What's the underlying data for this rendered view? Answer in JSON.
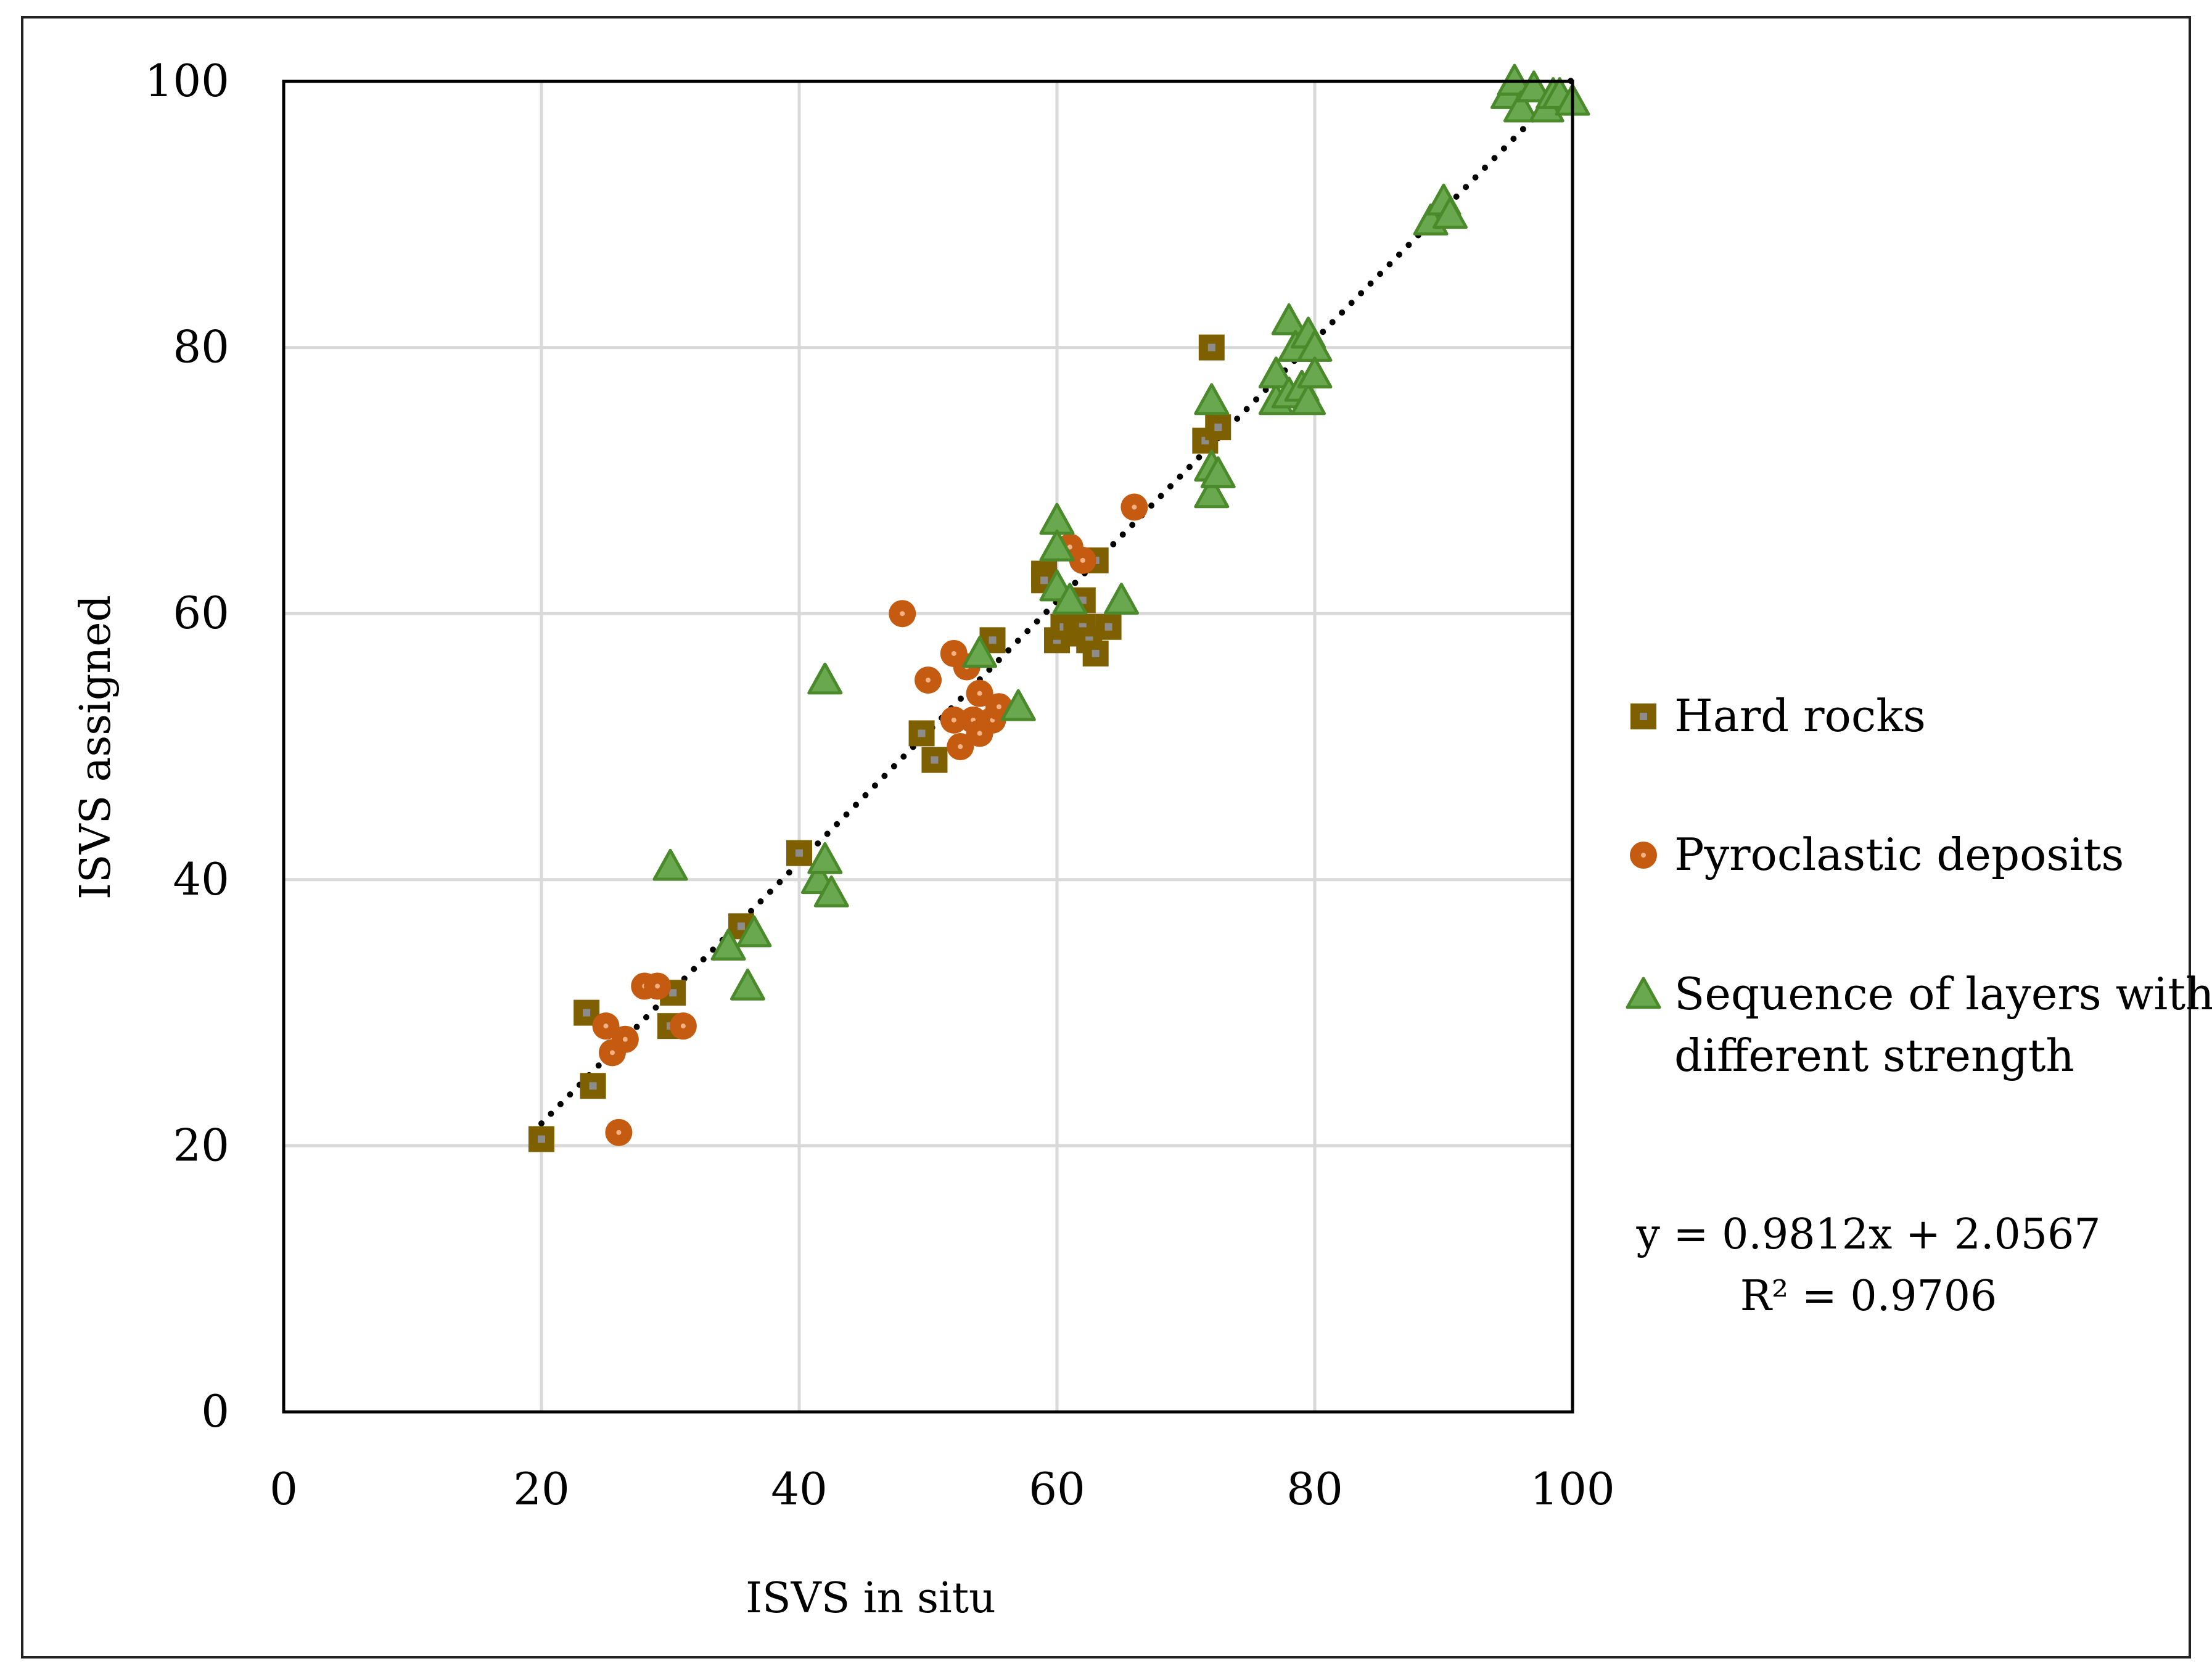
{
  "chart_data": {
    "type": "scatter",
    "title": "",
    "xlabel": "ISVS in situ",
    "ylabel": "ISVS assigned",
    "xlim": [
      0,
      100
    ],
    "ylim": [
      0,
      100
    ],
    "xticks": [
      "0",
      "20",
      "40",
      "60",
      "80",
      "100"
    ],
    "yticks": [
      "0",
      "20",
      "40",
      "60",
      "80",
      "100"
    ],
    "grid": true,
    "legend_position": "right",
    "series": [
      {
        "name": "Hard rocks",
        "marker": "square",
        "color": "#7f6000",
        "center_color": "#8c8c8c",
        "points": [
          [
            20,
            20.5
          ],
          [
            23.5,
            30
          ],
          [
            24,
            24.5
          ],
          [
            30,
            29
          ],
          [
            30.2,
            31.5
          ],
          [
            35.5,
            36.5
          ],
          [
            40,
            42
          ],
          [
            49.5,
            51
          ],
          [
            50.5,
            49
          ],
          [
            55,
            58
          ],
          [
            59,
            63
          ],
          [
            59,
            62.5
          ],
          [
            60,
            58
          ],
          [
            60.5,
            59
          ],
          [
            61,
            60.5
          ],
          [
            61.5,
            58.5
          ],
          [
            62,
            61
          ],
          [
            62,
            59
          ],
          [
            62.5,
            58
          ],
          [
            63,
            57
          ],
          [
            63,
            64
          ],
          [
            64,
            59
          ],
          [
            71.5,
            73
          ],
          [
            72,
            80
          ],
          [
            72.5,
            74
          ]
        ]
      },
      {
        "name": "Pyroclastic deposits",
        "marker": "circle",
        "color": "#c55a11",
        "center_color": "#f4b183",
        "points": [
          [
            25,
            29
          ],
          [
            25.5,
            27
          ],
          [
            26,
            21
          ],
          [
            26.5,
            28
          ],
          [
            28,
            32
          ],
          [
            29,
            32
          ],
          [
            31,
            29
          ],
          [
            48,
            60
          ],
          [
            50,
            55
          ],
          [
            52,
            57
          ],
          [
            52,
            52
          ],
          [
            52.5,
            50
          ],
          [
            53,
            56
          ],
          [
            53.5,
            52
          ],
          [
            54,
            54
          ],
          [
            54,
            51
          ],
          [
            55,
            52
          ],
          [
            55.5,
            53
          ],
          [
            61,
            65
          ],
          [
            62,
            64
          ],
          [
            66,
            68
          ]
        ]
      },
      {
        "name": "Sequence of layers with different strength",
        "marker": "triangle",
        "color": "#4a8a2a",
        "center_color": "#6aa84f",
        "points": [
          [
            30,
            41
          ],
          [
            34.5,
            35
          ],
          [
            36,
            32
          ],
          [
            36.5,
            36
          ],
          [
            41.5,
            40
          ],
          [
            42,
            55
          ],
          [
            42,
            41.5
          ],
          [
            42.5,
            39
          ],
          [
            54,
            57
          ],
          [
            57,
            53
          ],
          [
            60,
            67
          ],
          [
            60,
            65
          ],
          [
            60,
            62
          ],
          [
            61,
            61
          ],
          [
            65,
            61
          ],
          [
            72,
            76
          ],
          [
            72,
            71
          ],
          [
            72,
            69
          ],
          [
            72.5,
            70.5
          ],
          [
            77,
            76
          ],
          [
            77,
            78
          ],
          [
            78,
            82
          ],
          [
            78,
            76.5
          ],
          [
            78.5,
            80
          ],
          [
            79,
            77
          ],
          [
            79.5,
            76
          ],
          [
            79.5,
            81
          ],
          [
            80,
            80
          ],
          [
            80,
            78
          ],
          [
            89,
            89.5
          ],
          [
            90,
            91
          ],
          [
            90.5,
            90
          ],
          [
            95,
            99
          ],
          [
            95.5,
            100
          ],
          [
            96,
            98
          ],
          [
            97,
            99.5
          ],
          [
            98,
            98
          ],
          [
            98.5,
            99
          ],
          [
            99,
            99
          ],
          [
            100,
            98.5
          ]
        ]
      }
    ],
    "trendline": {
      "slope": 0.9812,
      "intercept": 2.0567,
      "x_range": [
        20,
        100
      ],
      "equation_label": "y = 0.9812x + 2.0567",
      "r2_label": "R² = 0.9706"
    }
  },
  "legend": {
    "items": [
      {
        "label": "Hard rocks",
        "marker": "square"
      },
      {
        "label": "Pyroclastic deposits",
        "marker": "circle"
      },
      {
        "label_line1": "Sequence of layers with",
        "label_line2": "different strength",
        "marker": "triangle"
      }
    ]
  }
}
